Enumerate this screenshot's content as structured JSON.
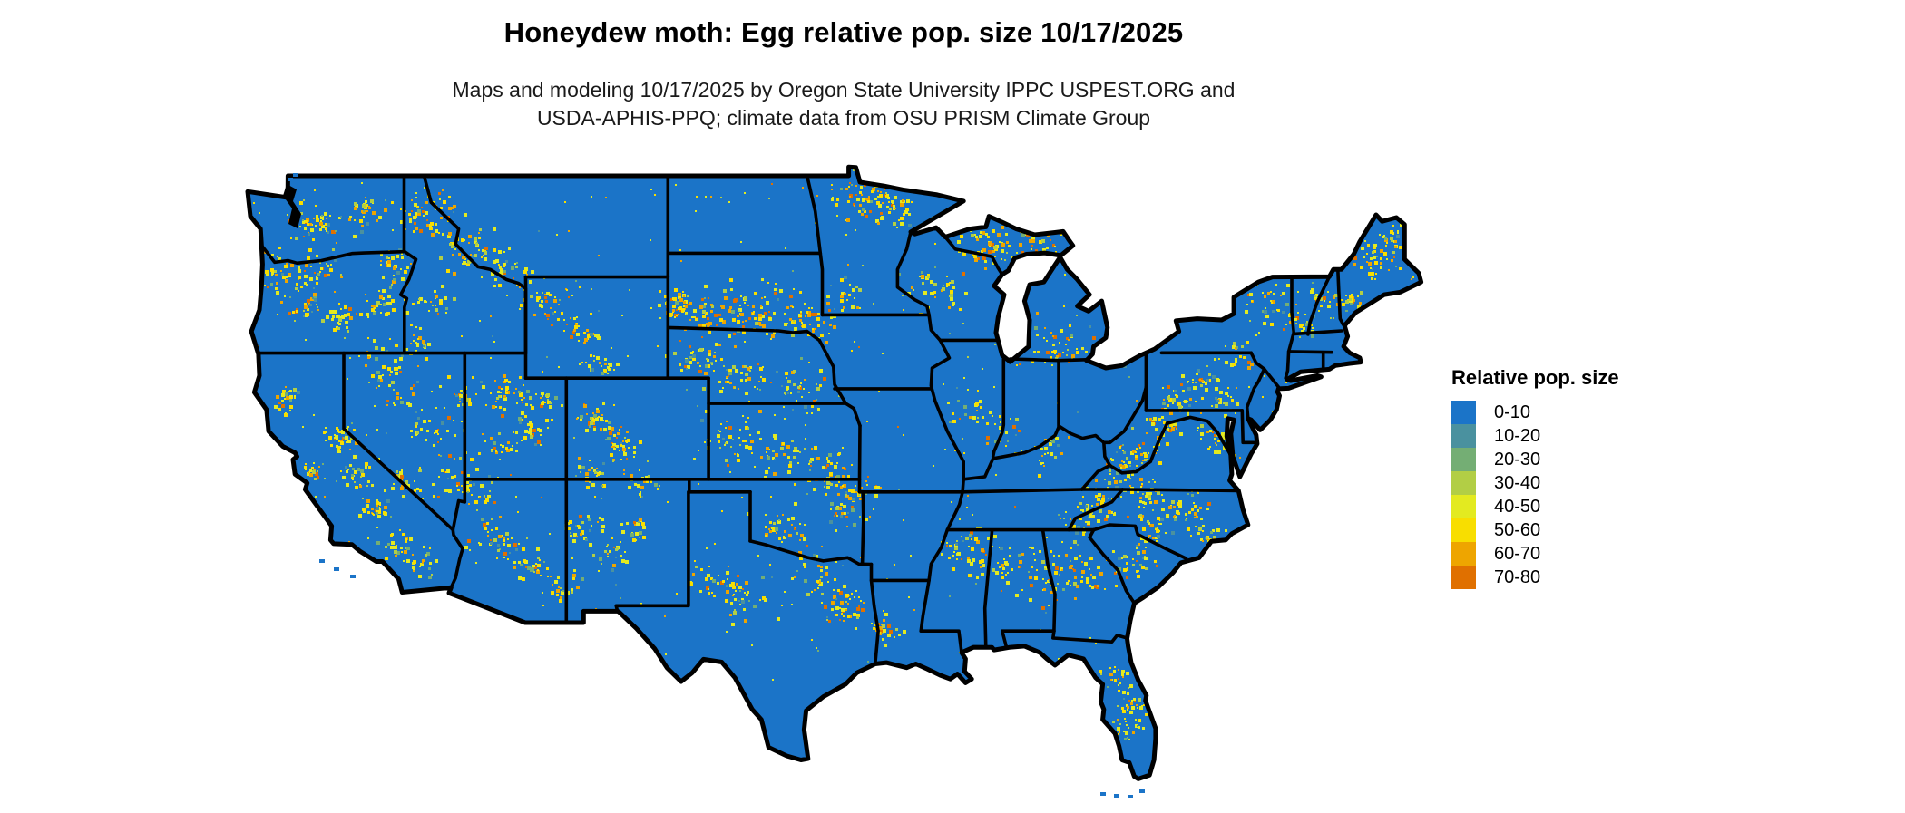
{
  "title": "Honeydew moth: Egg relative pop. size 10/17/2025",
  "subtitle": {
    "line1": "Maps and modeling 10/17/2025 by Oregon State University IPPC USPEST.ORG and",
    "line2": "USDA-APHIS-PPQ; climate data from OSU PRISM Climate Group"
  },
  "legend": {
    "title": "Relative pop. size",
    "items": [
      {
        "label": "0-10",
        "color": "#1b74c8"
      },
      {
        "label": "10-20",
        "color": "#4a919f"
      },
      {
        "label": "20-30",
        "color": "#74ae74"
      },
      {
        "label": "30-40",
        "color": "#b2ce45"
      },
      {
        "label": "40-50",
        "color": "#e3ea20"
      },
      {
        "label": "50-60",
        "color": "#f8de00"
      },
      {
        "label": "60-70",
        "color": "#eea500"
      },
      {
        "label": "70-80",
        "color": "#e07000"
      }
    ]
  },
  "map": {
    "region": "Continental United States",
    "land_color": "#1b74c8",
    "border_color": "#000000",
    "water_color": "#ffffff"
  },
  "chart_data": {
    "type": "heatmap",
    "title": "Honeydew moth: Egg relative pop. size 10/17/2025",
    "legend_title": "Relative pop. size",
    "bins": [
      "0-10",
      "10-20",
      "20-30",
      "30-40",
      "40-50",
      "50-60",
      "60-70",
      "70-80"
    ],
    "bin_colors": [
      "#1b74c8",
      "#4a919f",
      "#74ae74",
      "#b2ce45",
      "#e3ea20",
      "#f8de00",
      "#eea500",
      "#e07000"
    ],
    "dominant_class": "0-10",
    "high_value_regions": [
      "Pacific Northwest Cascades",
      "Northern Rockies",
      "Black Hills & central South Dakota",
      "Northern Minnesota",
      "Upper Peninsula Michigan",
      "Colorado Rockies",
      "Ozarks",
      "Central Texas",
      "Louisiana-Texas border",
      "Southern Appalachians",
      "Georgia-Alabama Piedmont",
      "Carolinas",
      "Maine",
      "Central Florida"
    ]
  }
}
